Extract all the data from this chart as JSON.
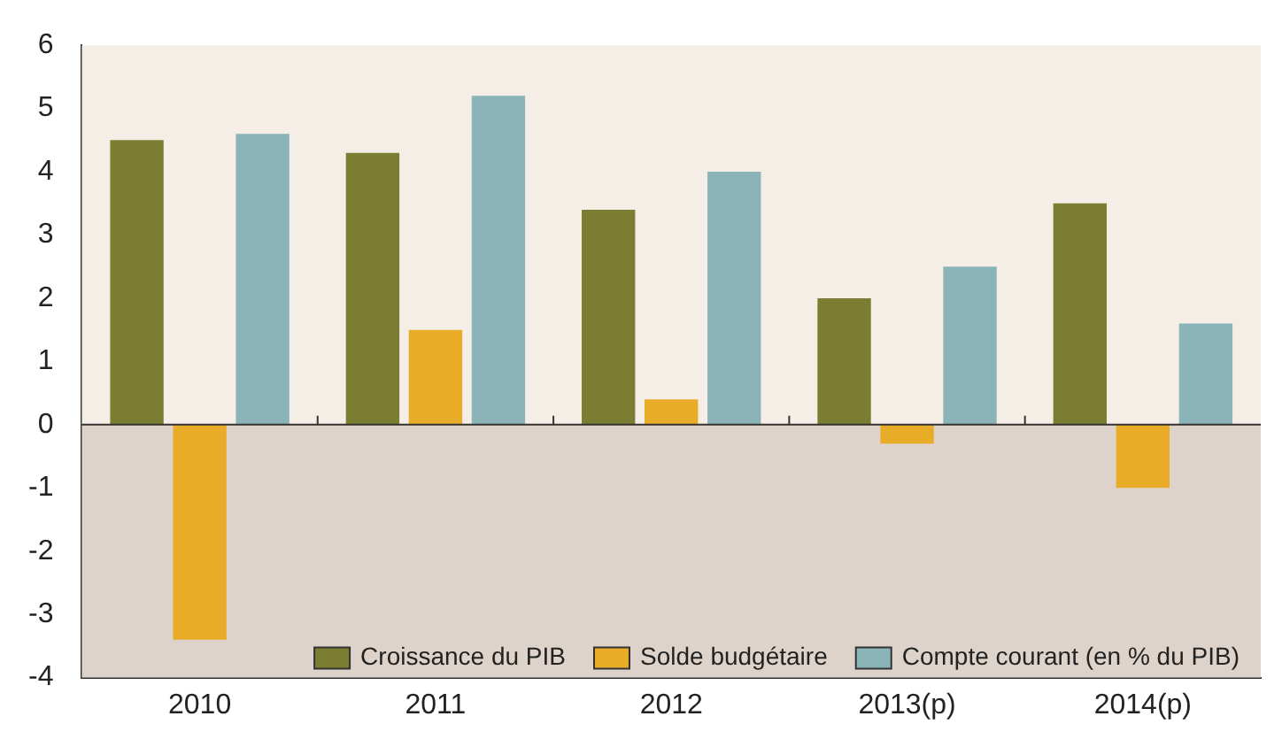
{
  "chart_data": {
    "type": "bar",
    "categories": [
      "2010",
      "2011",
      "2012",
      "2013(p)",
      "2014(p)"
    ],
    "series": [
      {
        "name": "Croissance du PIB",
        "color": "#7b7d33",
        "values": [
          4.5,
          4.3,
          3.4,
          2.0,
          3.5
        ]
      },
      {
        "name": "Solde budgétaire",
        "color": "#e9ac28",
        "values": [
          -3.4,
          1.5,
          0.4,
          -0.3,
          -1.0
        ]
      },
      {
        "name": "Compte courant (en % du PIB)",
        "color": "#8bb4b9",
        "values": [
          4.6,
          5.2,
          4.0,
          2.5,
          1.6
        ]
      }
    ],
    "bands": [
      {
        "axis": "y",
        "from": 0,
        "to": 6,
        "color": "#f4eee6"
      },
      {
        "axis": "y",
        "from": -4,
        "to": 0,
        "color": "#ddd3ca"
      }
    ],
    "ref_lines": [
      {
        "axis": "y",
        "value": 0,
        "color": "#333333"
      }
    ],
    "ylim": [
      -4,
      6
    ],
    "yticks": [
      -4,
      -3,
      -2,
      -1,
      0,
      1,
      2,
      3,
      4,
      5,
      6
    ],
    "grid": false,
    "legend": "bottom right"
  }
}
